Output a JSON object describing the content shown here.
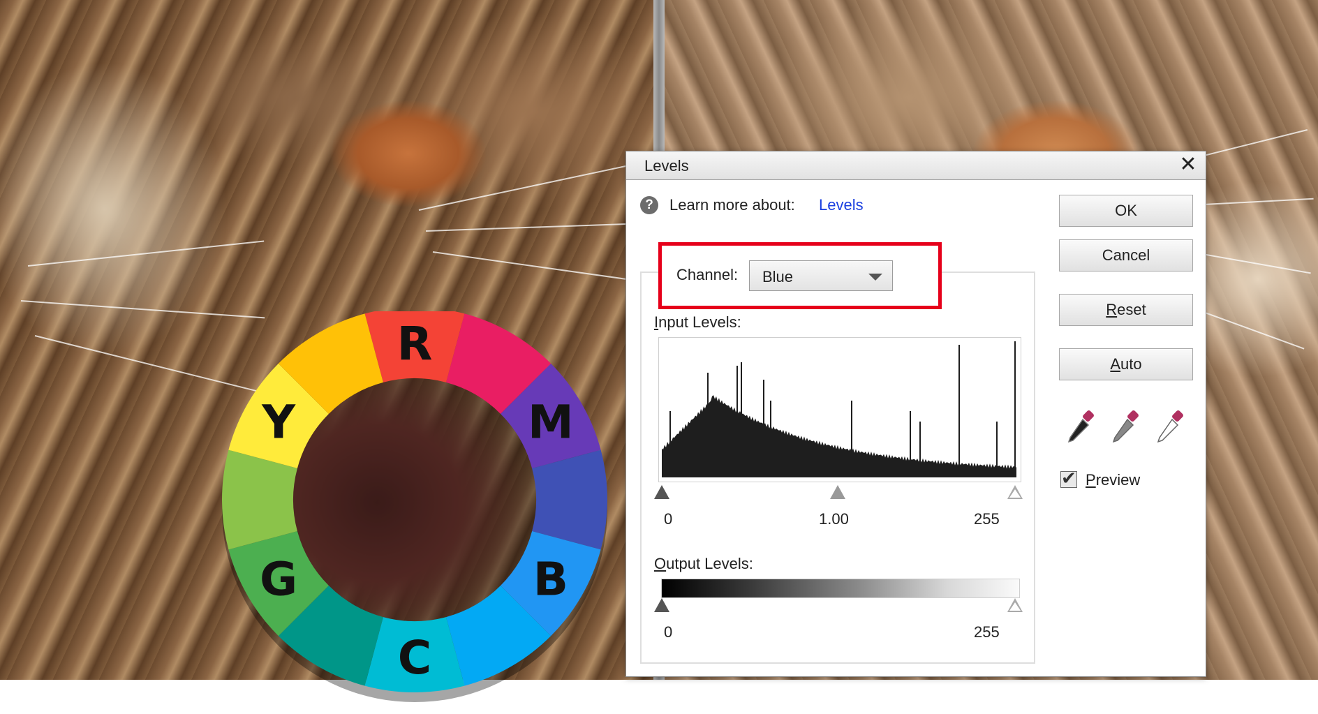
{
  "dialog": {
    "title": "Levels",
    "close_glyph": "✕",
    "learn_more_label": "Learn more about:",
    "learn_more_link": "Levels",
    "channel_label": "Channel:",
    "channel_value": "Blue",
    "input_levels_label": "Input Levels:",
    "input_black": "0",
    "input_gamma": "1.00",
    "input_white": "255",
    "output_levels_label": "Output Levels:",
    "output_black": "0",
    "output_white": "255",
    "buttons": {
      "ok": "OK",
      "cancel": "Cancel",
      "reset": "Reset",
      "auto": "Auto"
    },
    "preview_label": "Preview",
    "preview_checked": true
  },
  "color_wheel": {
    "letters": [
      "R",
      "M",
      "B",
      "C",
      "G",
      "Y"
    ],
    "colors": [
      "#f44336",
      "#e91e63",
      "#673ab7",
      "#3f51b5",
      "#2196f3",
      "#03a9f4",
      "#00bcd4",
      "#009688",
      "#4caf50",
      "#8bc34a",
      "#ffeb3b",
      "#ffc107"
    ]
  },
  "colors": {
    "highlight": "#e6001a",
    "link": "#1a3fe0"
  }
}
